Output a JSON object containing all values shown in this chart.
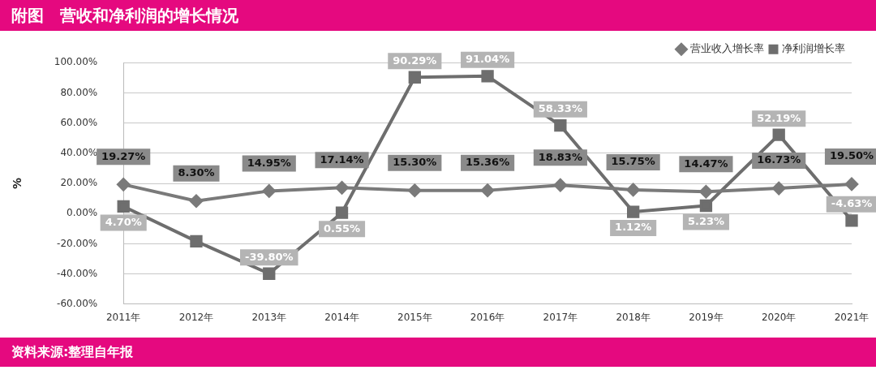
{
  "chart_data": {
    "type": "line",
    "title": "附图　营收和净利润的增长情况",
    "ylabel": "%",
    "annotations": [
      "资料来源:整理自年报"
    ],
    "categories": [
      "2011年",
      "2012年",
      "2013年",
      "2014年",
      "2015年",
      "2016年",
      "2017年",
      "2018年",
      "2019年",
      "2020年",
      "2021年"
    ],
    "series": [
      {
        "name": "营业收入增长率",
        "color": "#7a7a7a",
        "marker": "diamond",
        "values": [
          19.27,
          8.3,
          14.95,
          17.14,
          15.3,
          15.36,
          18.83,
          15.75,
          14.47,
          16.73,
          19.5
        ],
        "value_labels": [
          "19.27%",
          "8.30%",
          "14.95%",
          "17.14%",
          "15.30%",
          "15.36%",
          "18.83%",
          "15.75%",
          "14.47%",
          "16.73%",
          "19.50%"
        ]
      },
      {
        "name": "净利润增长率",
        "color": "#6e6e6e",
        "marker": "square",
        "values": [
          4.7,
          -18.4,
          -39.8,
          0.55,
          90.29,
          91.04,
          58.33,
          1.12,
          5.23,
          52.19,
          -4.63
        ],
        "value_labels": [
          "4.70%",
          null,
          "-39.80%",
          "0.55%",
          "90.29%",
          "91.04%",
          "58.33%",
          "1.12%",
          "5.23%",
          "52.19%",
          "-4.63%"
        ]
      }
    ],
    "ylim": [
      -60,
      100
    ],
    "yticks": [
      {
        "value": -60,
        "label": "-60.00%"
      },
      {
        "value": -40,
        "label": "-40.00%"
      },
      {
        "value": -20,
        "label": "-20.00%"
      },
      {
        "value": 0,
        "label": "0.00%"
      },
      {
        "value": 20,
        "label": "20.00%"
      },
      {
        "value": 40,
        "label": "40.00%"
      },
      {
        "value": 60,
        "label": "60.00%"
      },
      {
        "value": 80,
        "label": "80.00%"
      },
      {
        "value": 100,
        "label": "100.00%"
      }
    ],
    "grid": "y",
    "legend": "top right",
    "line_style": "solid"
  }
}
